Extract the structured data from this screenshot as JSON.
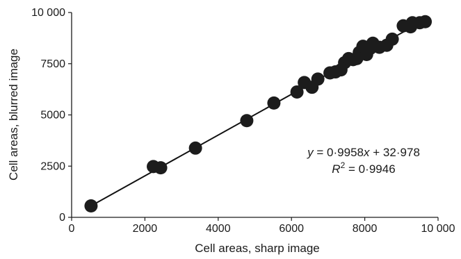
{
  "chart_data": {
    "type": "scatter",
    "xlabel": "Cell areas, sharp image",
    "ylabel": "Cell areas, blurred image",
    "xlim": [
      0,
      10000
    ],
    "ylim": [
      0,
      10000
    ],
    "x_ticks": [
      0,
      2000,
      4000,
      6000,
      8000,
      10000
    ],
    "y_ticks": [
      0,
      2500,
      5000,
      7500,
      10000
    ],
    "x_tick_labels": [
      "0",
      "2000",
      "4000",
      "6000",
      "8000",
      "10 000"
    ],
    "y_tick_labels": [
      "0",
      "2500",
      "5000",
      "7500",
      "10 000"
    ],
    "grid": false,
    "fit": {
      "slope": 0.9958,
      "intercept": 32.978,
      "x_range": [
        530,
        9650
      ]
    },
    "annotation": {
      "equation": "y = 0·9958x + 32·978",
      "r2": "R² = 0·9946"
    },
    "points": [
      [
        530,
        560
      ],
      [
        2230,
        2480
      ],
      [
        2430,
        2420
      ],
      [
        3380,
        3380
      ],
      [
        4780,
        4720
      ],
      [
        5520,
        5580
      ],
      [
        6150,
        6120
      ],
      [
        6350,
        6580
      ],
      [
        6560,
        6350
      ],
      [
        6720,
        6750
      ],
      [
        7050,
        7050
      ],
      [
        7200,
        7100
      ],
      [
        7350,
        7200
      ],
      [
        7450,
        7550
      ],
      [
        7560,
        7750
      ],
      [
        7680,
        7700
      ],
      [
        7780,
        7750
      ],
      [
        7850,
        8050
      ],
      [
        7950,
        8350
      ],
      [
        8050,
        7950
      ],
      [
        8150,
        8250
      ],
      [
        8220,
        8500
      ],
      [
        8400,
        8300
      ],
      [
        8600,
        8400
      ],
      [
        8750,
        8700
      ],
      [
        9050,
        9350
      ],
      [
        9250,
        9300
      ],
      [
        9300,
        9500
      ],
      [
        9500,
        9500
      ],
      [
        9650,
        9550
      ]
    ],
    "point_color": "#1c1c1c",
    "line_color": "#111111"
  }
}
